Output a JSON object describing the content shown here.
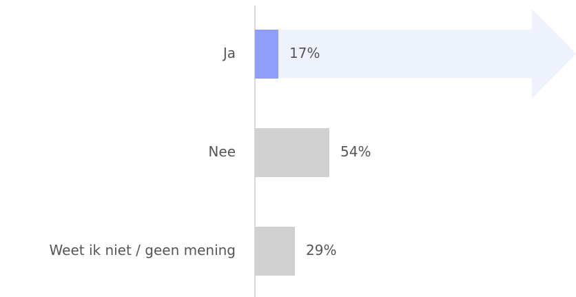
{
  "chart_data": {
    "type": "bar",
    "orientation": "horizontal",
    "categories": [
      "Ja",
      "Nee",
      "Weet ik niet / geen mening"
    ],
    "values": [
      17,
      54,
      29
    ],
    "value_labels": [
      "17%",
      "54%",
      "29%"
    ],
    "colors": [
      "#8f9ff9",
      "#d0d0d0",
      "#d0d0d0"
    ]
  }
}
